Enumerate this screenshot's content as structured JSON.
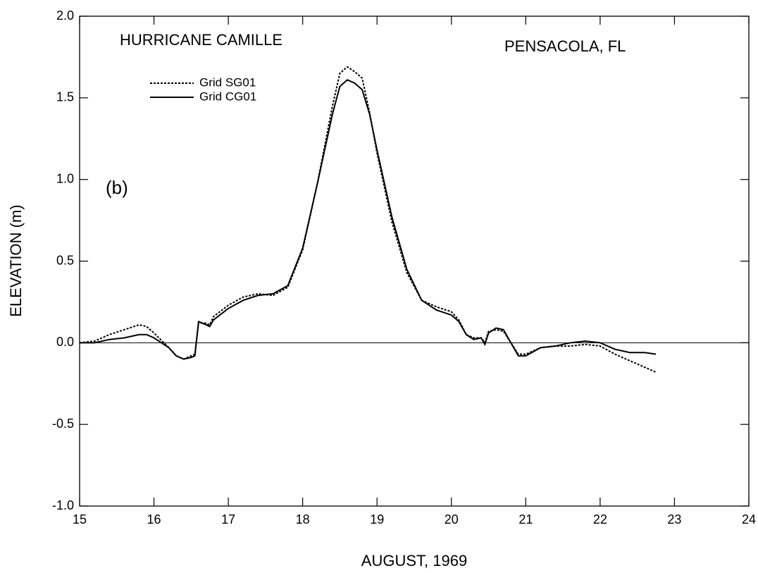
{
  "chart_data": {
    "type": "line",
    "title": "HURRICANE CAMILLE",
    "subtitle": "PENSACOLA, FL",
    "annotation": "(b)",
    "x_label": "AUGUST, 1969",
    "y_label": "ELEVATION (m)",
    "xlim": [
      15,
      24
    ],
    "xticks": [
      15,
      16,
      17,
      18,
      19,
      20,
      21,
      22,
      23,
      24
    ],
    "ylim": [
      -1,
      2
    ],
    "yticks": [
      {
        "value": -1,
        "label": "-1.0"
      },
      -0.5,
      {
        "value": 0,
        "label": "0.0"
      },
      0.5,
      {
        "value": 1,
        "label": "1.0"
      },
      1.5,
      {
        "value": 2,
        "label": "2.0"
      }
    ],
    "hline": 0,
    "legend": "upper left",
    "x": [
      15.0,
      15.2,
      15.4,
      15.6,
      15.8,
      15.9,
      16.0,
      16.2,
      16.3,
      16.4,
      16.5,
      16.55,
      16.6,
      16.7,
      16.75,
      16.8,
      17.0,
      17.2,
      17.4,
      17.6,
      17.8,
      18.0,
      18.2,
      18.4,
      18.5,
      18.6,
      18.7,
      18.8,
      18.9,
      19.0,
      19.2,
      19.4,
      19.6,
      19.8,
      20.0,
      20.1,
      20.2,
      20.3,
      20.4,
      20.45,
      20.5,
      20.6,
      20.7,
      20.8,
      20.9,
      21.0,
      21.2,
      21.4,
      21.6,
      21.8,
      22.0,
      22.2,
      22.4,
      22.6,
      22.75
    ],
    "series": [
      {
        "name": "Grid SG01",
        "color": "#000000",
        "dash": "dotted",
        "values": [
          0.0,
          0.01,
          0.05,
          0.08,
          0.11,
          0.1,
          0.06,
          -0.03,
          -0.08,
          -0.1,
          -0.08,
          -0.07,
          0.12,
          0.12,
          0.11,
          0.16,
          0.23,
          0.28,
          0.3,
          0.29,
          0.34,
          0.57,
          0.98,
          1.45,
          1.65,
          1.69,
          1.66,
          1.62,
          1.41,
          1.16,
          0.74,
          0.43,
          0.26,
          0.22,
          0.19,
          0.14,
          0.05,
          0.03,
          0.03,
          0.0,
          0.07,
          0.08,
          0.07,
          0.0,
          -0.07,
          -0.07,
          -0.03,
          -0.02,
          -0.02,
          -0.01,
          -0.02,
          -0.07,
          -0.11,
          -0.15,
          -0.18
        ]
      },
      {
        "name": "Grid CG01",
        "color": "#000000",
        "dash": "solid",
        "values": [
          0.0,
          0.0,
          0.02,
          0.03,
          0.05,
          0.05,
          0.03,
          -0.03,
          -0.08,
          -0.1,
          -0.09,
          -0.08,
          0.13,
          0.11,
          0.1,
          0.14,
          0.21,
          0.26,
          0.29,
          0.3,
          0.35,
          0.58,
          0.98,
          1.4,
          1.57,
          1.61,
          1.59,
          1.55,
          1.4,
          1.18,
          0.77,
          0.45,
          0.26,
          0.2,
          0.17,
          0.13,
          0.05,
          0.02,
          0.03,
          -0.01,
          0.06,
          0.09,
          0.08,
          0.0,
          -0.08,
          -0.08,
          -0.03,
          -0.02,
          0.0,
          0.01,
          0.0,
          -0.04,
          -0.06,
          -0.06,
          -0.07
        ]
      }
    ]
  }
}
